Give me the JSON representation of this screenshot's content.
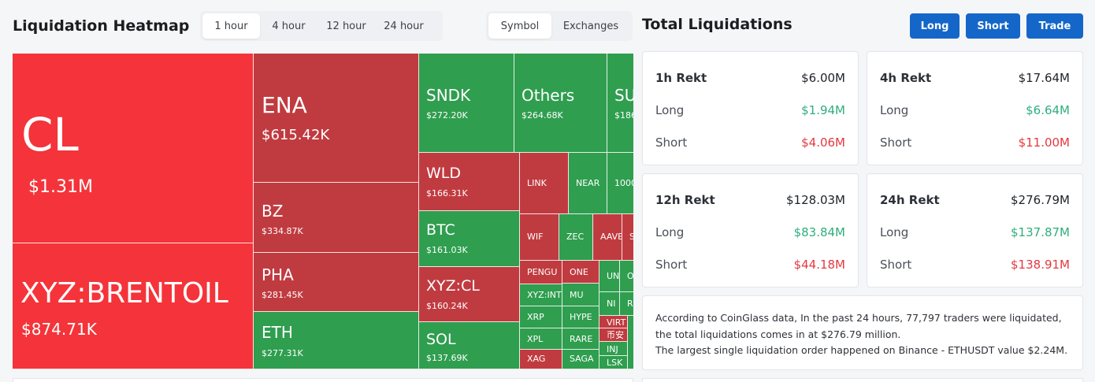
{
  "heatmap": {
    "title": "Liquidation Heatmap",
    "time_options": [
      "1 hour",
      "4 hour",
      "12 hour",
      "24 hour"
    ],
    "active_time": "1 hour",
    "mode_options": [
      "Symbol",
      "Exchanges"
    ],
    "active_mode": "Symbol",
    "colors": {
      "red_strong": "#f4343a",
      "red": "#c03b40",
      "green": "#2f9e4f"
    },
    "tiles": [
      {
        "symbol": "CL",
        "value": "$1.31M",
        "color": "red_strong"
      },
      {
        "symbol": "XYZ:BRENTOIL",
        "value": "$874.71K",
        "color": "red_strong"
      },
      {
        "symbol": "ENA",
        "value": "$615.42K",
        "color": "red"
      },
      {
        "symbol": "BZ",
        "value": "$334.87K",
        "color": "red"
      },
      {
        "symbol": "PHA",
        "value": "$281.45K",
        "color": "red"
      },
      {
        "symbol": "ETH",
        "value": "$277.31K",
        "color": "green"
      },
      {
        "symbol": "SNDK",
        "value": "$272.20K",
        "color": "green"
      },
      {
        "symbol": "Others",
        "value": "$264.68K",
        "color": "green"
      },
      {
        "symbol": "SU",
        "value": "$186",
        "color": "green"
      },
      {
        "symbol": "WLD",
        "value": "$166.31K",
        "color": "red"
      },
      {
        "symbol": "BTC",
        "value": "$161.03K",
        "color": "green"
      },
      {
        "symbol": "XYZ:CL",
        "value": "$160.24K",
        "color": "red"
      },
      {
        "symbol": "SOL",
        "value": "$137.69K",
        "color": "green"
      },
      {
        "symbol": "LINK",
        "value": "",
        "color": "red"
      },
      {
        "symbol": "NEAR",
        "value": "",
        "color": "green"
      },
      {
        "symbol": "1000",
        "value": "",
        "color": "green"
      },
      {
        "symbol": "WIF",
        "value": "",
        "color": "red"
      },
      {
        "symbol": "ZEC",
        "value": "",
        "color": "green"
      },
      {
        "symbol": "AAVE",
        "value": "",
        "color": "red"
      },
      {
        "symbol": "S",
        "value": "",
        "color": "red"
      },
      {
        "symbol": "PENGU",
        "value": "",
        "color": "red"
      },
      {
        "symbol": "ONE",
        "value": "",
        "color": "red"
      },
      {
        "symbol": "UN",
        "value": "",
        "color": "green"
      },
      {
        "symbol": "O",
        "value": "",
        "color": "green"
      },
      {
        "symbol": "XYZ:INT",
        "value": "",
        "color": "green"
      },
      {
        "symbol": "MU",
        "value": "",
        "color": "green"
      },
      {
        "symbol": "NI",
        "value": "",
        "color": "green"
      },
      {
        "symbol": "R",
        "value": "",
        "color": "green"
      },
      {
        "symbol": "XRP",
        "value": "",
        "color": "green"
      },
      {
        "symbol": "HYPE",
        "value": "",
        "color": "green"
      },
      {
        "symbol": "VIRT",
        "value": "",
        "color": "red"
      },
      {
        "symbol": "币安",
        "value": "",
        "color": "red"
      },
      {
        "symbol": "XPL",
        "value": "",
        "color": "green"
      },
      {
        "symbol": "RARE",
        "value": "",
        "color": "green"
      },
      {
        "symbol": "INJ",
        "value": "",
        "color": "green"
      },
      {
        "symbol": "XAG",
        "value": "",
        "color": "red"
      },
      {
        "symbol": "SAGA",
        "value": "",
        "color": "green"
      },
      {
        "symbol": "LSK",
        "value": "",
        "color": "green"
      }
    ]
  },
  "totals": {
    "title": "Total Liquidations",
    "buttons": {
      "long": "Long",
      "short": "Short",
      "trade": "Trade"
    },
    "colors": {
      "button": "#1467c8",
      "long": "#2fae7e",
      "short": "#e5383f"
    },
    "cards": [
      {
        "label": "1h Rekt",
        "total": "$6.00M",
        "long_label": "Long",
        "long": "$1.94M",
        "short_label": "Short",
        "short": "$4.06M"
      },
      {
        "label": "4h Rekt",
        "total": "$17.64M",
        "long_label": "Long",
        "long": "$6.64M",
        "short_label": "Short",
        "short": "$11.00M"
      },
      {
        "label": "12h Rekt",
        "total": "$128.03M",
        "long_label": "Long",
        "long": "$83.84M",
        "short_label": "Short",
        "short": "$44.18M"
      },
      {
        "label": "24h Rekt",
        "total": "$276.79M",
        "long_label": "Long",
        "long": "$137.87M",
        "short_label": "Short",
        "short": "$138.91M"
      }
    ],
    "summary_line1": "According to CoinGlass data, In the past 24 hours, 77,797 traders were liquidated, the total liquidations comes in at $276.79 million.",
    "summary_line2": "The largest single liquidation order happened on Binance - ETHUSDT value $2.24M."
  }
}
